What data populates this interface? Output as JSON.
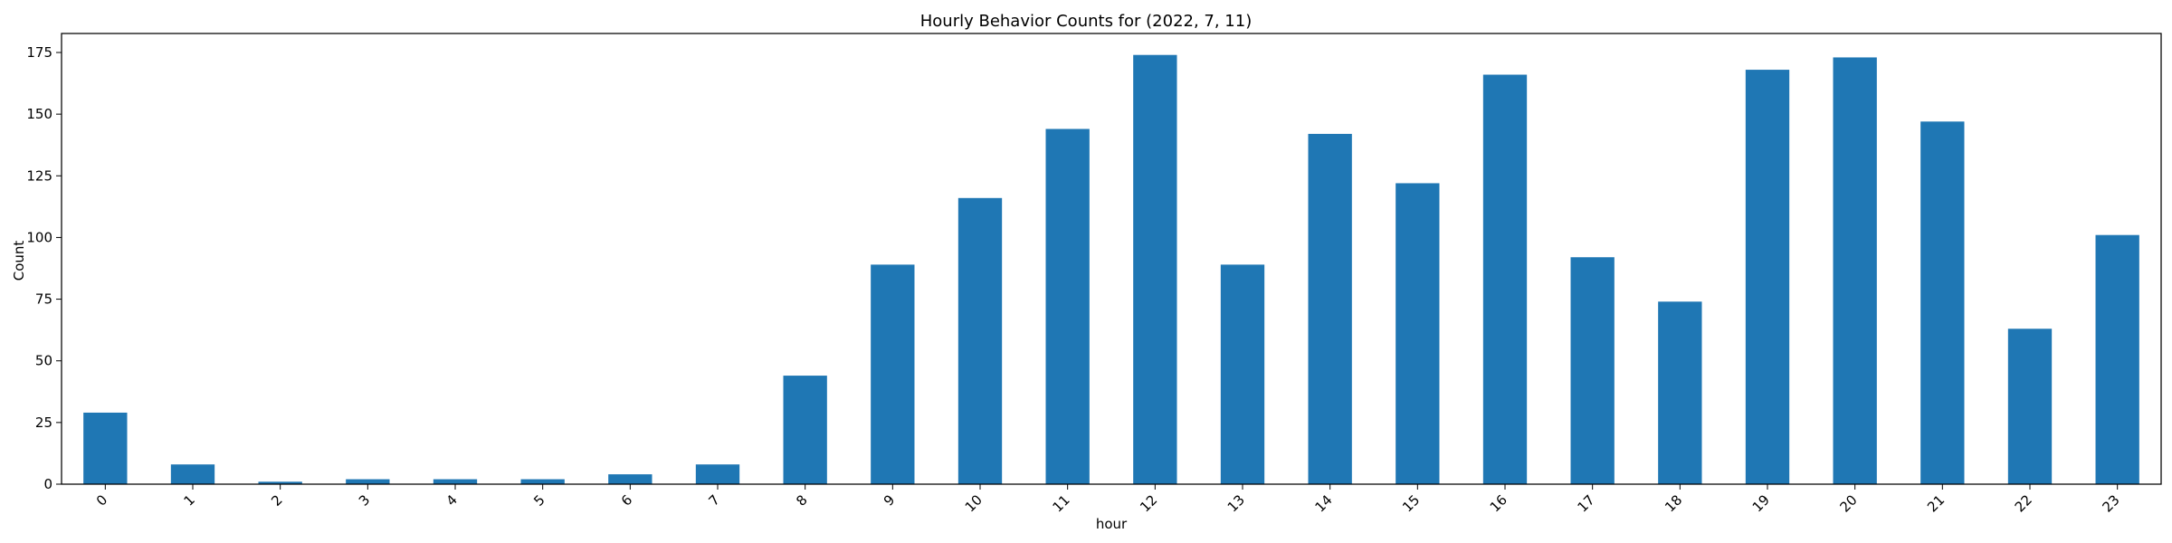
{
  "chart_data": {
    "type": "bar",
    "title": "Hourly Behavior Counts for (2022, 7, 11)",
    "xlabel": "hour",
    "ylabel": "Count",
    "categories": [
      "0",
      "1",
      "2",
      "3",
      "4",
      "5",
      "6",
      "7",
      "8",
      "9",
      "10",
      "11",
      "12",
      "13",
      "14",
      "15",
      "16",
      "17",
      "18",
      "19",
      "20",
      "21",
      "22",
      "23"
    ],
    "values": [
      29,
      8,
      1,
      2,
      2,
      2,
      4,
      8,
      44,
      89,
      116,
      144,
      174,
      89,
      142,
      122,
      166,
      92,
      74,
      168,
      173,
      147,
      63,
      101
    ],
    "ylim": [
      0,
      182.7
    ],
    "yticks": [
      0,
      25,
      50,
      75,
      100,
      125,
      150,
      175
    ],
    "bar_color": "#1f77b4",
    "grid": false,
    "legend": false,
    "xtick_rotation": 45
  }
}
